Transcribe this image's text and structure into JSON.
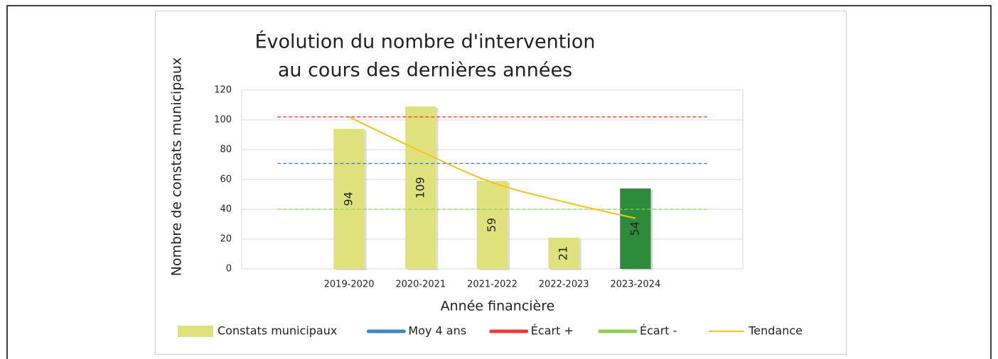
{
  "chart_data": {
    "type": "bar",
    "title": [
      "Évolution du nombre d'intervention",
      "au cours des dernières années"
    ],
    "x_label": "Année financière",
    "y_label": "Nombre de constats municipaux",
    "categories": [
      null,
      "2019-2020",
      "2020-2021",
      "2021-2022",
      "2022-2023",
      "2023-2024",
      null
    ],
    "ylim": [
      0,
      120
    ],
    "yticks": [
      0,
      20,
      40,
      60,
      80,
      100,
      120
    ],
    "grid": true,
    "legend": "bottom",
    "series": [
      {
        "name": "Constats municipaux",
        "type": "bar",
        "color": "#dfe27c",
        "colors": [
          null,
          "#dfe27c",
          "#dfe27c",
          "#dfe27c",
          "#dfe27c",
          "#2e8b3c",
          null
        ],
        "values": [
          null,
          94,
          109,
          59,
          21,
          54,
          null
        ]
      },
      {
        "name": "Moy 4 ans",
        "type": "line",
        "dashed": true,
        "color": "#3f86c6",
        "values": [
          70.75,
          70.75,
          70.75,
          70.75,
          70.75,
          70.75,
          70.75
        ]
      },
      {
        "name": "Écart +",
        "type": "line",
        "dashed": true,
        "color": "#f0393d",
        "values": [
          102,
          102,
          102,
          102,
          102,
          102,
          102
        ]
      },
      {
        "name": "Écart -",
        "type": "line",
        "dashed": true,
        "color": "#8fd052",
        "values": [
          40,
          40,
          40,
          40,
          40,
          40,
          40
        ]
      },
      {
        "name": "Tendance",
        "type": "line",
        "smooth": true,
        "color": "#f7c21b",
        "values": [
          null,
          102,
          79,
          58,
          45,
          34,
          null
        ]
      }
    ]
  }
}
